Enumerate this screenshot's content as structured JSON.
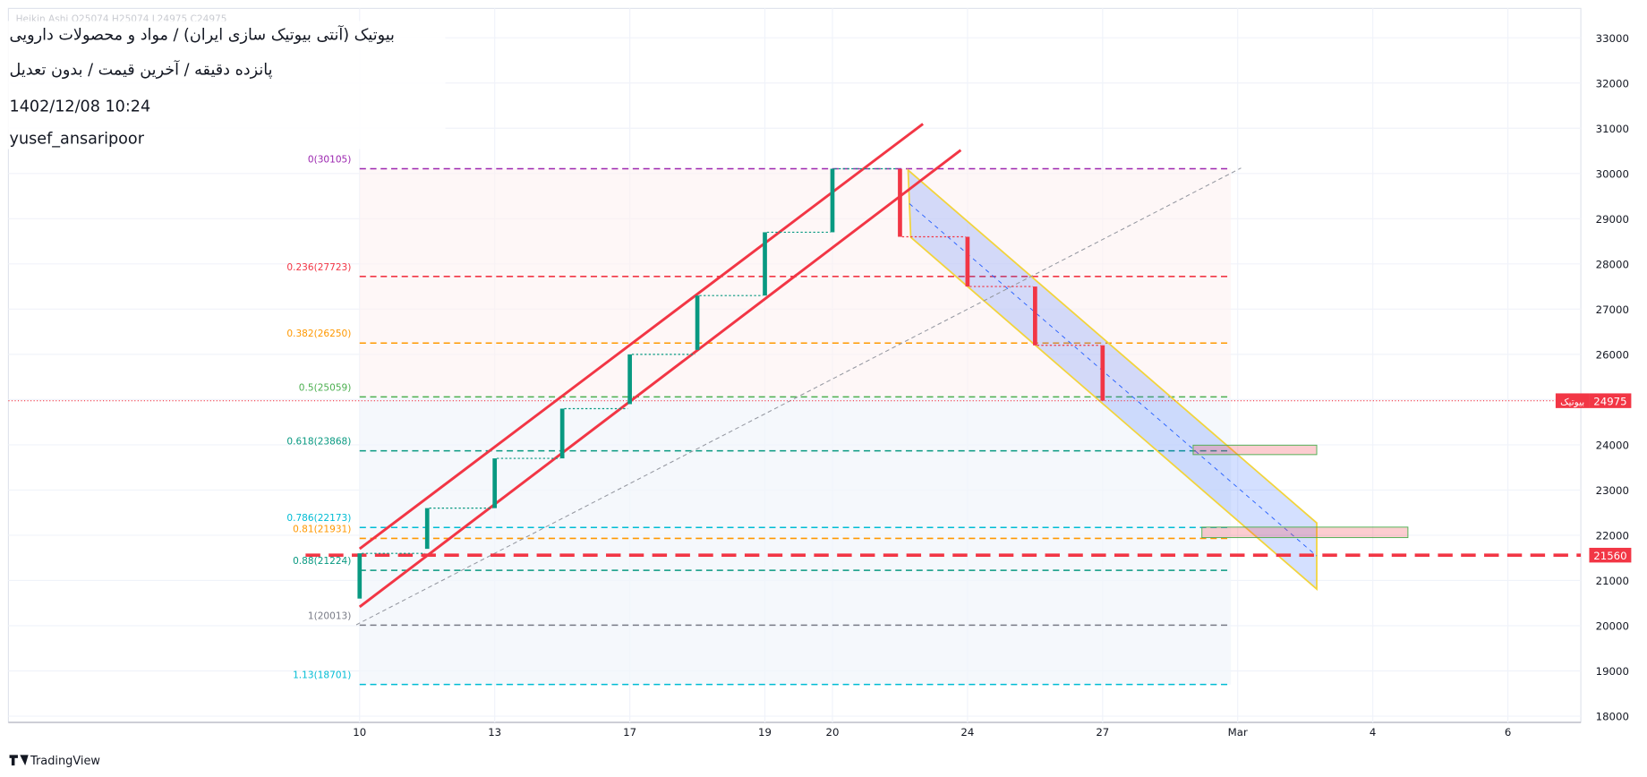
{
  "chart_data": {
    "type": "candlestick",
    "info_line": "Heikin Ashi O25074 H25074 L24975 C24975",
    "title": "بیوتیک (آنتی بیوتیک سازی ایران) / مواد و محصولات دارویی",
    "subtitle": "پانزده دقیقه / آخرین قیمت / بدون تعدیل",
    "timestamp": "1402/12/08 10:24",
    "author": "yusef_ansaripoor",
    "brand": "TradingView",
    "up_color": "#089981",
    "down_color": "#f23645",
    "x": [
      0,
      1,
      2,
      3,
      4,
      5,
      6,
      7,
      8,
      9,
      10,
      11
    ],
    "open": [
      20600,
      21700,
      22600,
      23700,
      24900,
      26100,
      27300,
      28700,
      30100,
      28600,
      27500,
      26200
    ],
    "close": [
      21600,
      22600,
      23700,
      24800,
      26000,
      27300,
      28700,
      30105,
      28600,
      27500,
      26200,
      24975
    ],
    "xlim": [
      -5.2,
      18.08
    ],
    "xticks": [
      {
        "value": 0,
        "label": "10"
      },
      {
        "value": 2,
        "label": "13"
      },
      {
        "value": 4,
        "label": "17"
      },
      {
        "value": 6,
        "label": "19"
      },
      {
        "value": 7,
        "label": "20"
      },
      {
        "value": 9,
        "label": "24"
      },
      {
        "value": 11,
        "label": "27"
      },
      {
        "value": 13,
        "label": "Mar"
      },
      {
        "value": 15,
        "label": "4"
      },
      {
        "value": 17,
        "label": "6"
      }
    ],
    "ylim": [
      17862,
      33650
    ],
    "yticks": [
      18000,
      19000,
      20000,
      21000,
      22000,
      23000,
      24000,
      25000,
      26000,
      27000,
      28000,
      29000,
      30000,
      31000,
      32000,
      33000
    ],
    "fib_x": [
      0,
      12.9
    ],
    "fib_levels": [
      {
        "label": "0(30105)",
        "value": 30105,
        "color": "#9c27b0"
      },
      {
        "label": "0.236(27723)",
        "value": 27723,
        "color": "#f23645"
      },
      {
        "label": "0.382(26250)",
        "value": 26250,
        "color": "#ff9800"
      },
      {
        "label": "0.5(25059)",
        "value": 25059,
        "color": "#4caf50"
      },
      {
        "label": "0.618(23868)",
        "value": 23868,
        "color": "#089981"
      },
      {
        "label": "0.786(22173)",
        "value": 22173,
        "color": "#00bcd4"
      },
      {
        "label": "0.81(21931)",
        "value": 21931,
        "color": "#ff9800"
      },
      {
        "label": "0.88(21224)",
        "value": 21224,
        "color": "#089981"
      },
      {
        "label": "1(20013)",
        "value": 20013,
        "color": "#787b86"
      },
      {
        "label": "1.13(18701)",
        "value": 18701,
        "color": "#00bcd4"
      }
    ],
    "trend_lines": [
      {
        "x": [
          0,
          8.34
        ],
        "y": [
          21700,
          31096
        ],
        "color": "#f23645"
      },
      {
        "x": [
          0,
          8.9
        ],
        "y": [
          20416,
          30516
        ],
        "color": "#f23645"
      },
      {
        "x": [
          -0.05,
          13.05
        ],
        "y": [
          20020,
          30121
        ],
        "color": "#9598a1"
      }
    ],
    "down_channel": {
      "x": [
        8.12,
        14.17,
        14.17,
        8.16
      ],
      "y": [
        30075,
        22273,
        20810,
        28589
      ]
    },
    "zones": [
      {
        "x": [
          12.34,
          14.17
        ],
        "y": [
          23783,
          23992
        ]
      },
      {
        "x": [
          12.47,
          15.52
        ],
        "y": [
          21948,
          22180
        ]
      }
    ],
    "last_price": {
      "name": "بیوتیک",
      "value": 24975
    },
    "support": {
      "value": 21560,
      "x": [
        -0.8,
        18.08
      ]
    }
  }
}
